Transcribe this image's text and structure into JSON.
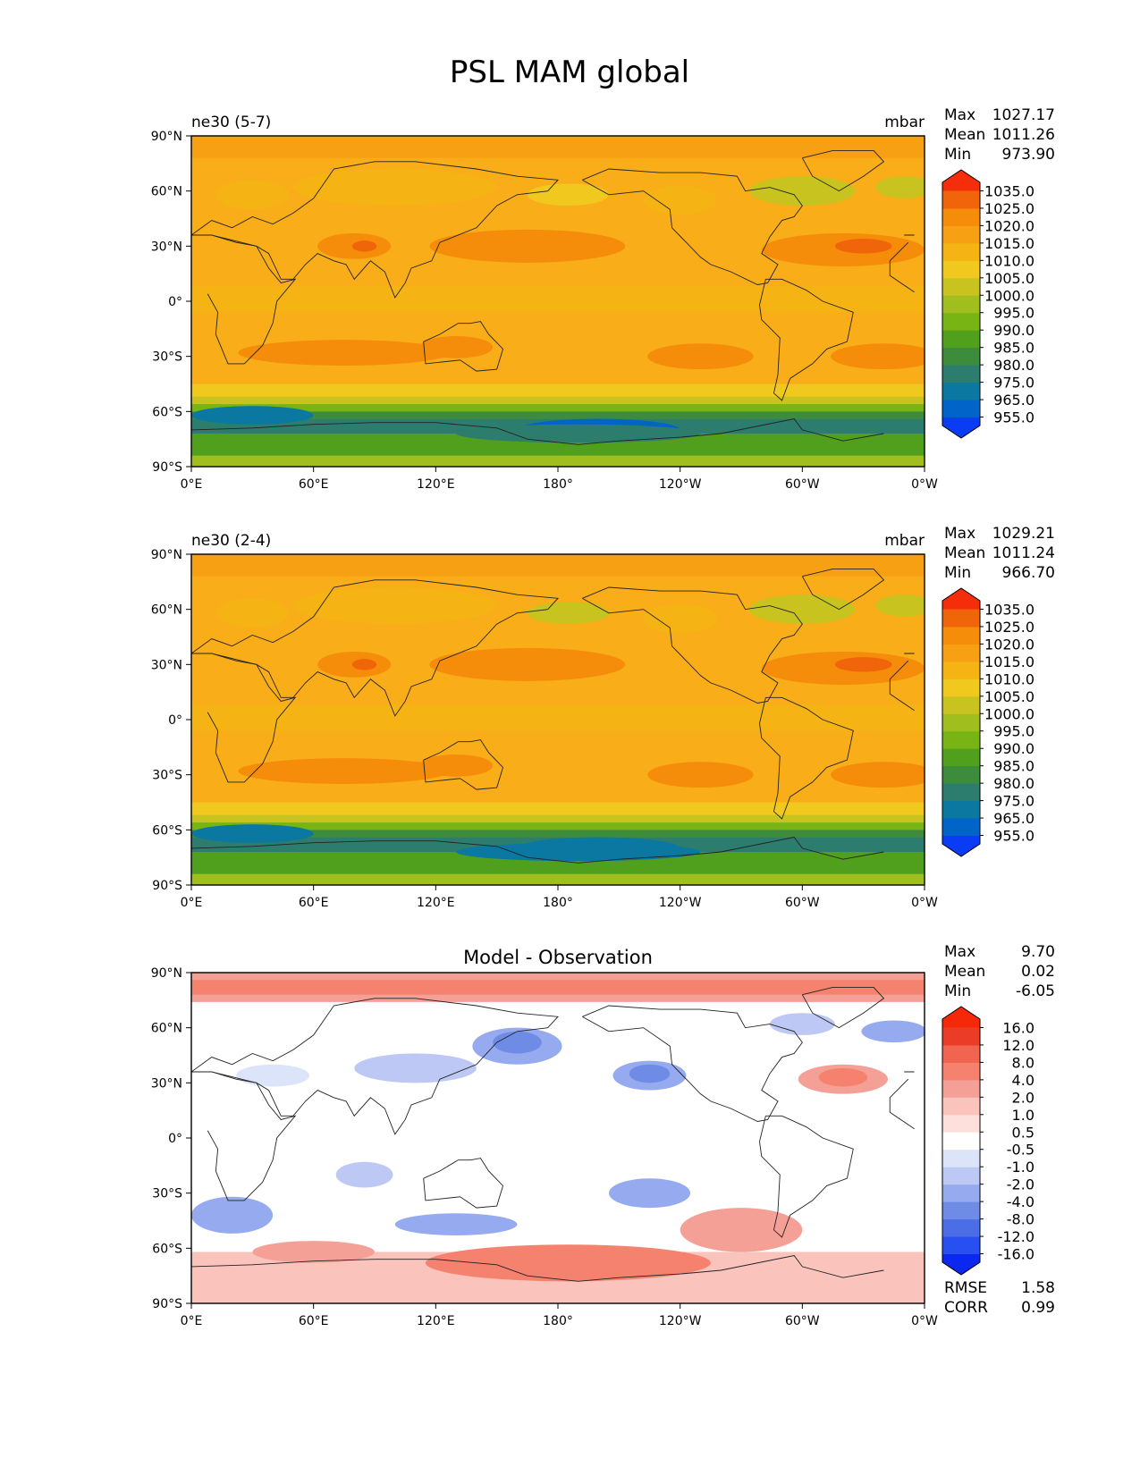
{
  "figure": {
    "title": "PSL MAM global"
  },
  "axes": {
    "lat_ticks": [
      "90°N",
      "60°N",
      "30°N",
      "0°",
      "30°S",
      "60°S",
      "90°S"
    ],
    "lon_ticks": [
      "0°E",
      "60°E",
      "120°E",
      "180°",
      "120°W",
      "60°W",
      "0°W"
    ]
  },
  "panels": [
    {
      "left_title": "ne30 (5-7)",
      "center_title": "",
      "units": "mbar",
      "stats": [
        {
          "label": "Max",
          "value": "1027.17"
        },
        {
          "label": "Mean",
          "value": "1011.26"
        },
        {
          "label": "Min",
          "value": "973.90"
        }
      ],
      "colorbar": {
        "levels": [
          "955.0",
          "965.0",
          "975.0",
          "980.0",
          "985.0",
          "990.0",
          "995.0",
          "1000.0",
          "1005.0",
          "1010.0",
          "1015.0",
          "1020.0",
          "1025.0",
          "1035.0"
        ],
        "colors": [
          "#0a3cf5",
          "#0064c8",
          "#0a78a0",
          "#2d7d6e",
          "#3c8c3c",
          "#50a01e",
          "#78b414",
          "#a0be1e",
          "#c8c31e",
          "#f0c81e",
          "#f5b414",
          "#f8a014",
          "#f58c0a",
          "#f0640a",
          "#f52d0a"
        ]
      },
      "fields": {
        "base": "#f9ad18"
      },
      "extra": []
    },
    {
      "left_title": "ne30 (2-4)",
      "center_title": "",
      "units": "mbar",
      "stats": [
        {
          "label": "Max",
          "value": "1029.21"
        },
        {
          "label": "Mean",
          "value": "1011.24"
        },
        {
          "label": "Min",
          "value": "966.70"
        }
      ],
      "colorbar": {
        "levels": [
          "955.0",
          "965.0",
          "975.0",
          "980.0",
          "985.0",
          "990.0",
          "995.0",
          "1000.0",
          "1005.0",
          "1010.0",
          "1015.0",
          "1020.0",
          "1025.0",
          "1035.0"
        ],
        "colors": [
          "#0a3cf5",
          "#0064c8",
          "#0a78a0",
          "#2d7d6e",
          "#3c8c3c",
          "#50a01e",
          "#78b414",
          "#a0be1e",
          "#c8c31e",
          "#f0c81e",
          "#f5b414",
          "#f8a014",
          "#f58c0a",
          "#f0640a",
          "#f52d0a"
        ]
      },
      "fields": {
        "base": "#f9ad18"
      },
      "extra": []
    },
    {
      "left_title": "",
      "center_title": "Model - Observation",
      "units": "",
      "stats": [
        {
          "label": "Max",
          "value": "9.70"
        },
        {
          "label": "Mean",
          "value": "0.02"
        },
        {
          "label": "Min",
          "value": "-6.05"
        }
      ],
      "colorbar": {
        "levels": [
          "-16.0",
          "-12.0",
          "-8.0",
          "-4.0",
          "-2.0",
          "-1.0",
          "-0.5",
          "0.5",
          "1.0",
          "2.0",
          "4.0",
          "8.0",
          "12.0",
          "16.0"
        ],
        "colors": [
          "#0a28f0",
          "#2850f0",
          "#4b6ee6",
          "#6e8ce6",
          "#96aaf0",
          "#bec8f5",
          "#dce4fa",
          "#ffffff",
          "#fde0dc",
          "#fac3bc",
          "#f5a096",
          "#f5826e",
          "#f06450",
          "#eb3c28",
          "#f5280a"
        ]
      },
      "fields": {
        "base": "#ffffff"
      },
      "extra": [
        {
          "label": "RMSE",
          "value": "1.58"
        },
        {
          "label": "CORR",
          "value": "0.99"
        }
      ]
    }
  ],
  "chart_data": [
    {
      "type": "heatmap",
      "title": "ne30 (5-7)",
      "figure_title": "PSL MAM global",
      "variable": "PSL",
      "season": "MAM",
      "units": "mbar",
      "xlabel": "",
      "ylabel": "",
      "x_ticks": [
        "0°E",
        "60°E",
        "120°E",
        "180°",
        "120°W",
        "60°W",
        "0°W"
      ],
      "y_ticks": [
        "90°N",
        "60°N",
        "30°N",
        "0°",
        "30°S",
        "60°S",
        "90°S"
      ],
      "lon_range": [
        0,
        360
      ],
      "lat_range": [
        -90,
        90
      ],
      "stats": {
        "max": 1027.17,
        "mean": 1011.26,
        "min": 973.9
      },
      "contour_levels": [
        955.0,
        965.0,
        975.0,
        980.0,
        985.0,
        990.0,
        995.0,
        1000.0,
        1005.0,
        1010.0,
        1015.0,
        1020.0,
        1025.0,
        1035.0
      ],
      "features": [
        {
          "lon": 165,
          "lat": 30,
          "value": 1022,
          "name": "North Pacific high"
        },
        {
          "lon": 320,
          "lat": 30,
          "value": 1024,
          "name": "Azores high"
        },
        {
          "lon": 80,
          "lat": 30,
          "value": 1022,
          "name": "Tibetan high"
        },
        {
          "lon": 75,
          "lat": -30,
          "value": 1020,
          "name": "Indian Ocean high"
        },
        {
          "lon": 250,
          "lat": -32,
          "value": 1020,
          "name": "South Pacific high"
        },
        {
          "lon": 340,
          "lat": -30,
          "value": 1020,
          "name": "South Atlantic high"
        },
        {
          "lon": 200,
          "lat": -68,
          "value": 978,
          "name": "Southern Ocean low"
        },
        {
          "lon": 30,
          "lat": -62,
          "value": 972,
          "name": "Southern Ocean low"
        }
      ]
    },
    {
      "type": "heatmap",
      "title": "ne30 (2-4)",
      "figure_title": "PSL MAM global",
      "variable": "PSL",
      "season": "MAM",
      "units": "mbar",
      "xlabel": "",
      "ylabel": "",
      "x_ticks": [
        "0°E",
        "60°E",
        "120°E",
        "180°",
        "120°W",
        "60°W",
        "0°W"
      ],
      "y_ticks": [
        "90°N",
        "60°N",
        "30°N",
        "0°",
        "30°S",
        "60°S",
        "90°S"
      ],
      "lon_range": [
        0,
        360
      ],
      "lat_range": [
        -90,
        90
      ],
      "stats": {
        "max": 1029.21,
        "mean": 1011.24,
        "min": 966.7
      },
      "contour_levels": [
        955.0,
        965.0,
        975.0,
        980.0,
        985.0,
        990.0,
        995.0,
        1000.0,
        1005.0,
        1010.0,
        1015.0,
        1020.0,
        1025.0,
        1035.0
      ],
      "features": [
        {
          "lon": 145,
          "lat": 30,
          "value": 1023,
          "name": "North Pacific high"
        },
        {
          "lon": 315,
          "lat": 30,
          "value": 1022,
          "name": "Azores high"
        },
        {
          "lon": 80,
          "lat": 28,
          "value": 1023,
          "name": "Tibetan high"
        },
        {
          "lon": 75,
          "lat": -30,
          "value": 1020,
          "name": "Indian Ocean high"
        },
        {
          "lon": 250,
          "lat": -32,
          "value": 1020,
          "name": "South Pacific high"
        },
        {
          "lon": 180,
          "lat": -68,
          "value": 970,
          "name": "Southern Ocean low"
        }
      ]
    },
    {
      "type": "heatmap",
      "title": "Model - Observation",
      "figure_title": "PSL MAM global",
      "variable": "PSL difference",
      "season": "MAM",
      "units": "mbar",
      "xlabel": "",
      "ylabel": "",
      "x_ticks": [
        "0°E",
        "60°E",
        "120°E",
        "180°",
        "120°W",
        "60°W",
        "0°W"
      ],
      "y_ticks": [
        "90°N",
        "60°N",
        "30°N",
        "0°",
        "30°S",
        "60°S",
        "90°S"
      ],
      "lon_range": [
        0,
        360
      ],
      "lat_range": [
        -90,
        90
      ],
      "stats": {
        "max": 9.7,
        "mean": 0.02,
        "min": -6.05,
        "rmse": 1.58,
        "corr": 0.99
      },
      "contour_levels": [
        -16.0,
        -12.0,
        -8.0,
        -4.0,
        -2.0,
        -1.0,
        -0.5,
        0.5,
        1.0,
        2.0,
        4.0,
        8.0,
        12.0,
        16.0
      ],
      "features": [
        {
          "lon": 180,
          "lat": 85,
          "value": 6,
          "name": "Arctic positive"
        },
        {
          "lon": 160,
          "lat": 52,
          "value": -5,
          "name": "NW Pacific negative"
        },
        {
          "lon": 225,
          "lat": 32,
          "value": -4,
          "name": "NE Pacific negative"
        },
        {
          "lon": 320,
          "lat": 32,
          "value": 4,
          "name": "North Atlantic positive"
        },
        {
          "lon": 195,
          "lat": -67,
          "value": 6,
          "name": "Antarctic positive"
        },
        {
          "lon": 130,
          "lat": -48,
          "value": -3,
          "name": "Southern Indian negative"
        },
        {
          "lon": 225,
          "lat": -32,
          "value": -3,
          "name": "South Pacific negative"
        },
        {
          "lon": 20,
          "lat": -42,
          "value": -3,
          "name": "South Atlantic negative"
        }
      ]
    }
  ]
}
